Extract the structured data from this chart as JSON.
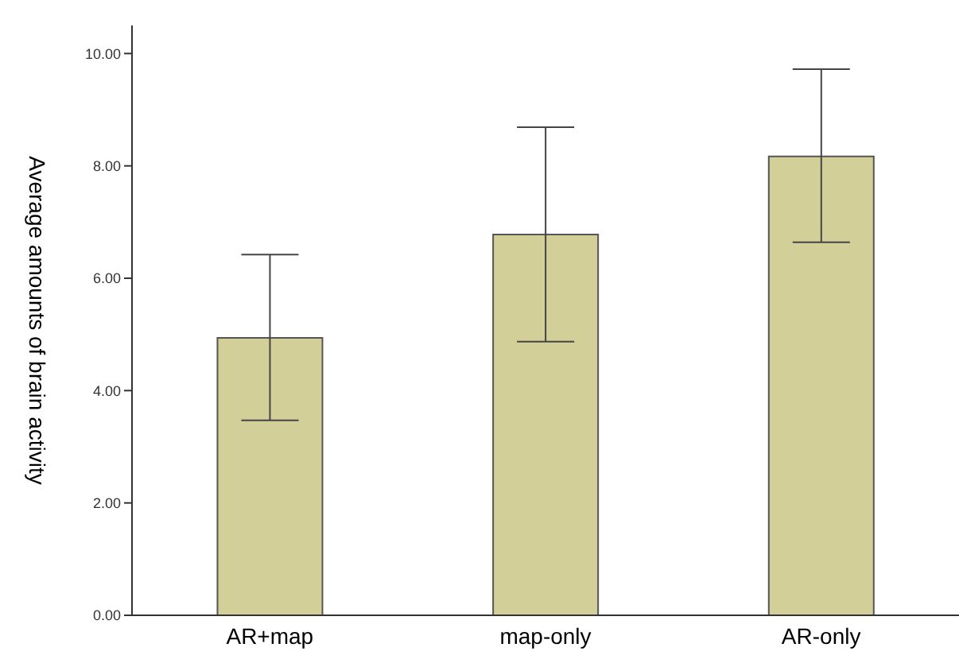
{
  "chart_data": {
    "type": "bar",
    "ylabel": "Average amounts of brain activity",
    "categories": [
      "AR+map",
      "map-only",
      "AR-only"
    ],
    "values": [
      4.94,
      6.78,
      8.17
    ],
    "errors": [
      [
        3.47,
        6.42
      ],
      [
        4.87,
        8.69
      ],
      [
        6.64,
        9.72
      ]
    ],
    "color": "#d3cf98",
    "ylim": [
      0,
      10.5
    ],
    "yticks": [
      {
        "value": 0,
        "label": "0.00"
      },
      {
        "value": 2,
        "label": "2.00"
      },
      {
        "value": 4,
        "label": "4.00"
      },
      {
        "value": 6,
        "label": "6.00"
      },
      {
        "value": 8,
        "label": "8.00"
      },
      {
        "value": 10,
        "label": "10.00"
      }
    ],
    "grid": false
  }
}
